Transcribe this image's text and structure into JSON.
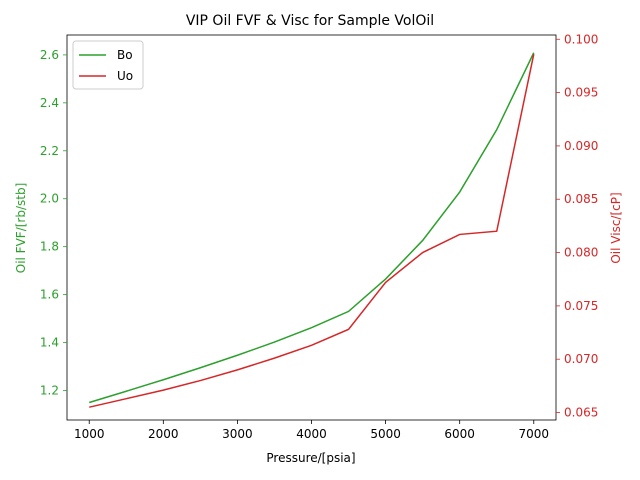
{
  "chart_data": {
    "type": "line",
    "title": "VIP  Oil FVF & Visc for Sample VolOil",
    "xlabel": "Pressure/[psia]",
    "ylabel_left": "Oil FVF/[rb/stb]",
    "ylabel_right": "Oil Visc/[cP]",
    "x": [
      1000,
      1500,
      2000,
      2500,
      3000,
      3500,
      4000,
      4500,
      5000,
      5500,
      6000,
      6500,
      7000
    ],
    "xlim": [
      700,
      7300
    ],
    "xticks": [
      "1000",
      "2000",
      "3000",
      "4000",
      "5000",
      "6000",
      "7000"
    ],
    "ylim_left": [
      1.077,
      2.683
    ],
    "yticks_left": [
      "1.2",
      "1.4",
      "1.6",
      "1.8",
      "2.0",
      "2.2",
      "2.4",
      "2.6"
    ],
    "ylim_right": [
      0.0643,
      0.1004
    ],
    "yticks_right": [
      "0.065",
      "0.070",
      "0.075",
      "0.080",
      "0.085",
      "0.090",
      "0.095",
      "0.100"
    ],
    "legend_position": "top-left",
    "grid": false,
    "series": [
      {
        "name": "Bo",
        "axis": "left",
        "color": "#2ca02c",
        "values": [
          1.15,
          1.197,
          1.245,
          1.295,
          1.347,
          1.402,
          1.462,
          1.53,
          1.665,
          1.826,
          2.028,
          2.288,
          2.609
        ]
      },
      {
        "name": "Uo",
        "axis": "right",
        "color": "#d62728",
        "values": [
          0.0655,
          0.0663,
          0.0671,
          0.068,
          0.069,
          0.0701,
          0.0713,
          0.0728,
          0.0772,
          0.08,
          0.0817,
          0.082,
          0.0986
        ]
      }
    ]
  }
}
